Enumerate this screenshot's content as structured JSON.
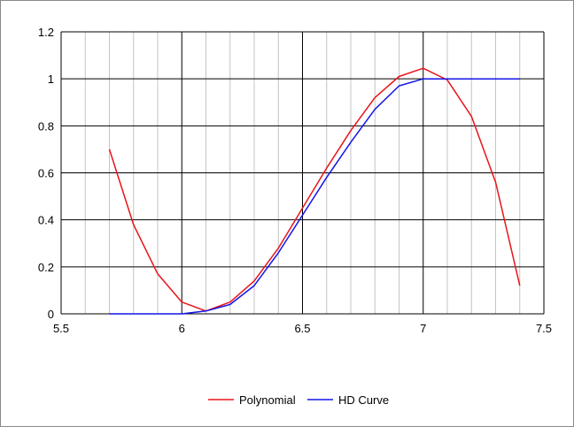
{
  "chart_data": {
    "type": "line",
    "title": "",
    "xlabel": "",
    "ylabel": "",
    "xlim": [
      5.5,
      7.5
    ],
    "ylim": [
      0,
      1.2
    ],
    "x_ticks": [
      "5.5",
      "6",
      "6.5",
      "7",
      "7.5"
    ],
    "y_ticks": [
      "0",
      "0.2",
      "0.4",
      "0.6",
      "0.8",
      "1",
      "1.2"
    ],
    "grid": true,
    "legend_position": "bottom",
    "series": [
      {
        "name": "Polynomial",
        "color": "#e8141a",
        "x": [
          5.7,
          5.8,
          5.9,
          6.0,
          6.1,
          6.2,
          6.3,
          6.4,
          6.5,
          6.6,
          6.7,
          6.8,
          6.9,
          7.0,
          7.1,
          7.2,
          7.3,
          7.4
        ],
        "y": [
          0.7,
          0.38,
          0.17,
          0.05,
          0.012,
          0.05,
          0.14,
          0.28,
          0.45,
          0.62,
          0.78,
          0.92,
          1.01,
          1.045,
          0.995,
          0.84,
          0.56,
          0.12
        ]
      },
      {
        "name": "HD Curve",
        "color": "#1414e8",
        "x": [
          5.7,
          5.8,
          5.9,
          6.0,
          6.1,
          6.2,
          6.3,
          6.4,
          6.5,
          6.6,
          6.7,
          6.8,
          6.9,
          7.0,
          7.1,
          7.2,
          7.3,
          7.4
        ],
        "y": [
          0,
          0,
          0,
          0,
          0.012,
          0.04,
          0.12,
          0.26,
          0.42,
          0.58,
          0.73,
          0.87,
          0.97,
          1.0,
          1.0,
          1.0,
          1.0,
          1.0
        ]
      }
    ]
  }
}
